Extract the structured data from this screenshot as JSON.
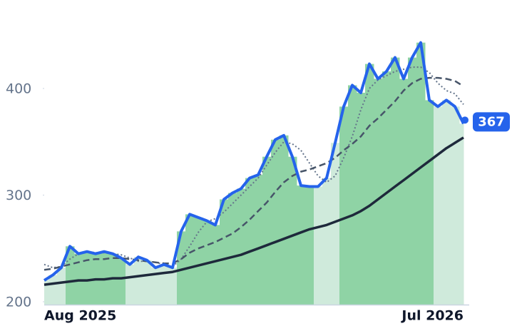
{
  "chart_data": {
    "type": "line",
    "categories": [
      "Aug 2025",
      null,
      null,
      null,
      null,
      null,
      null,
      null,
      null,
      null,
      null,
      null,
      null,
      null,
      null,
      null,
      null,
      null,
      null,
      null,
      null,
      null,
      null,
      null,
      null,
      null,
      null,
      null,
      null,
      null,
      null,
      null,
      null,
      null,
      null,
      null,
      null,
      null,
      null,
      null,
      null,
      null,
      null,
      null,
      null,
      null,
      null,
      null,
      null,
      "Jul 2026"
    ],
    "ylim": [
      197,
      480
    ],
    "yticks": [
      200,
      300,
      400
    ],
    "band_colors": [
      "#cfeadb",
      "#cfeadb",
      "#cfeadb",
      "#8fd3a5",
      "#8fd3a5",
      "#8fd3a5",
      "#8fd3a5",
      "#8fd3a5",
      "#8fd3a5",
      "#8fd3a5",
      "#cfeadb",
      "#cfeadb",
      "#cfeadb",
      "#cfeadb",
      "#cfeadb",
      "#cfeadb",
      "#8fd3a5",
      "#8fd3a5",
      "#8fd3a5",
      "#8fd3a5",
      "#8fd3a5",
      "#8fd3a5",
      "#8fd3a5",
      "#8fd3a5",
      "#8fd3a5",
      "#8fd3a5",
      "#8fd3a5",
      "#8fd3a5",
      "#8fd3a5",
      "#8fd3a5",
      "#8fd3a5",
      "#8fd3a5",
      "#cfeadb",
      "#cfeadb",
      "#cfeadb",
      "#8fd3a5",
      "#8fd3a5",
      "#8fd3a5",
      "#8fd3a5",
      "#8fd3a5",
      "#8fd3a5",
      "#8fd3a5",
      "#8fd3a5",
      "#8fd3a5",
      "#8fd3a5",
      "#8fd3a5",
      "#cfeadb",
      "#cfeadb",
      "#cfeadb",
      "#cfeadb"
    ],
    "series": [
      {
        "color": "#2563eb",
        "style": "solid",
        "width": 4,
        "fill": true,
        "values": [
          220,
          225,
          232,
          252,
          245,
          247,
          245,
          247,
          245,
          241,
          235,
          242,
          239,
          232,
          235,
          232,
          266,
          282,
          279,
          276,
          272,
          296,
          302,
          306,
          316,
          319,
          336,
          352,
          356,
          336,
          309,
          308,
          308,
          316,
          349,
          383,
          403,
          396,
          423,
          409,
          416,
          429,
          409,
          429,
          443,
          389,
          383,
          389,
          383,
          367
        ],
        "value_labels": [
          null,
          null,
          null,
          null,
          null,
          null,
          null,
          null,
          null,
          null,
          null,
          null,
          null,
          null,
          null,
          null,
          null,
          null,
          null,
          null,
          null,
          null,
          null,
          null,
          null,
          null,
          null,
          null,
          null,
          null,
          null,
          null,
          null,
          null,
          null,
          null,
          null,
          null,
          null,
          null,
          null,
          null,
          null,
          null,
          null,
          null,
          null,
          null,
          null,
          "367"
        ]
      },
      {
        "color": "#64748b",
        "style": "dotted",
        "width": 2,
        "values": [
          235,
          232,
          233,
          240,
          245,
          247,
          246,
          246,
          245,
          244,
          241,
          238,
          238,
          237,
          235,
          233,
          240,
          252,
          265,
          275,
          278,
          284,
          292,
          300,
          308,
          316,
          328,
          340,
          350,
          348,
          342,
          330,
          318,
          312,
          318,
          335,
          355,
          380,
          400,
          408,
          412,
          416,
          418,
          420,
          420,
          415,
          405,
          398,
          395,
          385
        ]
      },
      {
        "color": "#475569",
        "style": "dashed",
        "width": 2.5,
        "values": [
          230,
          231,
          233,
          235,
          237,
          239,
          240,
          240,
          241,
          241,
          240,
          239,
          238,
          237,
          236,
          236,
          240,
          246,
          250,
          253,
          256,
          260,
          264,
          270,
          277,
          285,
          293,
          303,
          312,
          318,
          322,
          324,
          327,
          330,
          335,
          342,
          348,
          355,
          365,
          372,
          380,
          388,
          398,
          405,
          409,
          410,
          410,
          409,
          407,
          402
        ]
      },
      {
        "color": "#1e293b",
        "style": "solid",
        "width": 3.5,
        "values": [
          216,
          217,
          218,
          219,
          220,
          220,
          221,
          221,
          222,
          222,
          223,
          224,
          225,
          226,
          227,
          228,
          230,
          232,
          234,
          236,
          238,
          240,
          242,
          244,
          247,
          250,
          253,
          256,
          259,
          262,
          265,
          268,
          270,
          272,
          275,
          278,
          281,
          285,
          290,
          296,
          302,
          308,
          314,
          320,
          326,
          332,
          338,
          344,
          349,
          354
        ]
      }
    ]
  }
}
